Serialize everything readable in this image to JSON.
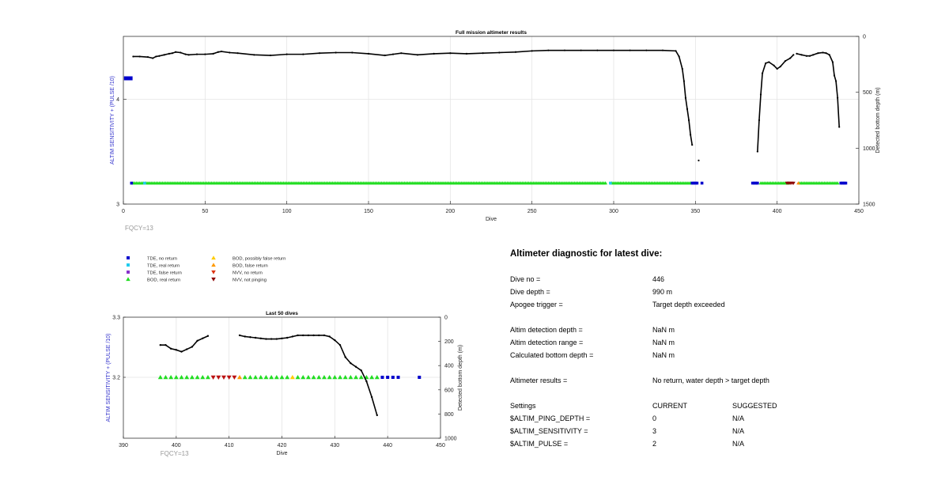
{
  "chart_data": [
    {
      "type": "scatter",
      "title": "Full mission altimeter results",
      "xlabel": "Dive",
      "ylabel": "ALTIM SENSITIVITY + (PULSE /10)",
      "y2label": "Detected bottom depth (m)",
      "xlim": [
        0,
        450
      ],
      "ylim": [
        3,
        4.6
      ],
      "y2lim": [
        1500,
        0
      ],
      "y2_direction": "reversed",
      "xticks": [
        0,
        50,
        100,
        150,
        200,
        250,
        300,
        350,
        400,
        450
      ],
      "yticks": [
        3,
        4
      ],
      "y2ticks": [
        0,
        500,
        1000,
        1500
      ],
      "grid": true,
      "annotation": "FQCY=13",
      "sensitivity_series": [
        {
          "name": "sensitivity",
          "color": "#0000cc",
          "x": [
            1,
            2,
            3,
            4,
            5
          ],
          "y": [
            4.2,
            4.2,
            4.2,
            4.2,
            4.2
          ]
        }
      ],
      "marker_rows": {
        "bod_real_return": {
          "name": "BOD, real return",
          "color": "#22dd22",
          "y": 3.2,
          "ranges": [
            [
              6,
              12
            ],
            [
              14,
              295
            ],
            [
              299,
              347
            ],
            [
              390,
              407
            ],
            [
              414,
              437
            ]
          ]
        },
        "tde_no_return": {
          "name": "TDE, no return",
          "color": "#0000cc",
          "y": 3.2,
          "x": [
            5,
            348,
            349,
            350,
            351,
            354,
            385,
            386,
            387,
            388,
            439,
            440,
            441,
            442
          ]
        },
        "tde_real_return": {
          "name": "TDE, real return",
          "color": "#22ccee",
          "y": 3.2,
          "x": [
            13,
            298
          ]
        },
        "nvv_not_pinging": {
          "name": "NVV, not pinging",
          "color": "#8b0000",
          "y": 3.2,
          "x": [
            406,
            407,
            408,
            409,
            410
          ]
        },
        "bod_false_return": {
          "name": "BOD, false return",
          "color": "#ff8800",
          "y": 3.2,
          "x": [
            413
          ]
        }
      },
      "depth_series": [
        {
          "segment": 1,
          "x": [
            6,
            10,
            15,
            18,
            20,
            22,
            25,
            28,
            30,
            32,
            35,
            38,
            40,
            45,
            50,
            55,
            58,
            60,
            65,
            70,
            80,
            90,
            100,
            110,
            120,
            130,
            140,
            150,
            160,
            165,
            170,
            180,
            190,
            200,
            210,
            220,
            230,
            240,
            250,
            260,
            270,
            280,
            290,
            300,
            310,
            320,
            330,
            338,
            340,
            342,
            343,
            344,
            345,
            346,
            347,
            348
          ],
          "y": [
            180,
            180,
            185,
            195,
            180,
            175,
            165,
            155,
            150,
            140,
            145,
            160,
            165,
            160,
            160,
            155,
            140,
            135,
            145,
            150,
            165,
            170,
            160,
            160,
            150,
            145,
            145,
            155,
            170,
            160,
            150,
            165,
            155,
            150,
            155,
            150,
            145,
            140,
            130,
            125,
            125,
            125,
            125,
            125,
            125,
            125,
            125,
            130,
            180,
            290,
            400,
            550,
            650,
            750,
            880,
            970
          ]
        },
        {
          "segment": 2,
          "x": [
            352
          ],
          "y": [
            1110
          ]
        },
        {
          "segment": 3,
          "x": [
            388,
            389,
            390,
            391,
            393,
            395,
            398,
            400,
            402,
            405,
            408,
            410
          ],
          "y": [
            1030,
            750,
            520,
            330,
            240,
            230,
            260,
            290,
            270,
            220,
            195,
            165
          ]
        },
        {
          "segment": 4,
          "x": [
            412,
            415,
            418,
            420,
            422,
            425,
            428,
            430,
            432,
            434,
            435,
            436,
            437,
            438
          ],
          "y": [
            155,
            165,
            175,
            175,
            165,
            150,
            145,
            150,
            165,
            230,
            350,
            400,
            550,
            810
          ]
        }
      ]
    },
    {
      "type": "scatter",
      "title": "Last 50 dives",
      "xlabel": "Dive",
      "ylabel": "ALTIM SENSITIVITY + (PULSE /10)",
      "y2label": "Detected bottom depth (m)",
      "xlim": [
        390,
        450
      ],
      "ylim": [
        3.0,
        3.3
      ],
      "y2lim": [
        1000,
        0
      ],
      "y2_direction": "reversed",
      "xticks": [
        390,
        400,
        410,
        420,
        430,
        440,
        450
      ],
      "yticks": [
        3.2,
        3.3
      ],
      "y2ticks": [
        0,
        200,
        400,
        600,
        800,
        1000
      ],
      "grid": true,
      "annotation": "FQCY=13",
      "markers": [
        {
          "name": "BOD, real return",
          "color": "#22dd22",
          "symbol": "triangle-up",
          "x": [
            397,
            398,
            399,
            400,
            401,
            402,
            403,
            404,
            405,
            406,
            413,
            414,
            415,
            416,
            417,
            418,
            419,
            420,
            421,
            423,
            424,
            425,
            426,
            427,
            428,
            429,
            430,
            431,
            432,
            433,
            434,
            435,
            436,
            437,
            438
          ],
          "y": 3.2
        },
        {
          "name": "NVV, not pinging",
          "color": "#bb1111",
          "symbol": "triangle-down",
          "x": [
            407,
            408,
            409,
            410,
            411
          ],
          "y": 3.2
        },
        {
          "name": "BOD, false return",
          "color": "#ff9900",
          "symbol": "triangle-up",
          "x": [
            412
          ],
          "y": 3.2
        },
        {
          "name": "BOD, possibly false return",
          "color": "#ffcc00",
          "symbol": "triangle-up",
          "x": [
            422
          ],
          "y": 3.2
        },
        {
          "name": "TDE, no return",
          "color": "#0000cc",
          "symbol": "square",
          "x": [
            439,
            440,
            441,
            442,
            446
          ],
          "y": 3.2
        }
      ],
      "depth_series": [
        {
          "segment": 1,
          "x": [
            397,
            398,
            399,
            400,
            401,
            402,
            403,
            404,
            405,
            406
          ],
          "y": [
            230,
            230,
            260,
            270,
            285,
            265,
            245,
            195,
            175,
            155
          ]
        },
        {
          "segment": 2,
          "x": [
            412,
            413,
            414,
            415,
            416,
            417,
            418,
            419,
            420,
            421,
            422,
            423,
            424,
            425,
            426,
            427,
            428,
            429,
            430,
            431,
            432,
            433,
            434,
            435,
            436,
            437,
            438
          ],
          "y": [
            150,
            160,
            165,
            170,
            175,
            180,
            180,
            180,
            175,
            170,
            160,
            150,
            150,
            150,
            150,
            150,
            150,
            160,
            190,
            230,
            330,
            380,
            410,
            440,
            530,
            660,
            810
          ]
        }
      ]
    }
  ],
  "legend": [
    {
      "label": "TDE, no return",
      "symbol": "square",
      "color": "#0000cc"
    },
    {
      "label": "TDE, real return",
      "symbol": "square",
      "color": "#22ccee"
    },
    {
      "label": "TDE, false return",
      "symbol": "square",
      "color": "#8833cc"
    },
    {
      "label": "BOD, real return",
      "symbol": "triangle-up",
      "color": "#22dd22"
    },
    {
      "label": "BOD, possibly false return",
      "symbol": "triangle-up",
      "color": "#ffcc00"
    },
    {
      "label": "BOD, false return",
      "symbol": "triangle-up",
      "color": "#ff9900"
    },
    {
      "label": "NVV, no return",
      "symbol": "triangle-down",
      "color": "#dd3311"
    },
    {
      "label": "NVV, not pinging",
      "symbol": "triangle-down",
      "color": "#8b0000"
    }
  ],
  "diagnostic": {
    "title": "Altimeter diagnostic for latest dive:",
    "rows": [
      {
        "label": "Dive no =",
        "value": "446"
      },
      {
        "label": "Dive depth =",
        "value": "990 m"
      },
      {
        "label": "Apogee trigger =",
        "value": "Target depth exceeded"
      },
      {
        "label": "Altim detection depth =",
        "value": "NaN m"
      },
      {
        "label": "Altim detection range =",
        "value": "NaN m"
      },
      {
        "label": "Calculated bottom depth =",
        "value": "NaN m"
      },
      {
        "label": "Altimeter results =",
        "value": "No return, water depth > target depth"
      }
    ],
    "settings_header": {
      "label": "Settings",
      "current": "CURRENT",
      "suggested": "SUGGESTED"
    },
    "settings": [
      {
        "label": "$ALTIM_PING_DEPTH =",
        "current": "0",
        "suggested": "N/A"
      },
      {
        "label": "$ALTIM_SENSITIVITY =",
        "current": "3",
        "suggested": "N/A"
      },
      {
        "label": "$ALTIM_PULSE =",
        "current": "2",
        "suggested": "N/A"
      }
    ]
  }
}
